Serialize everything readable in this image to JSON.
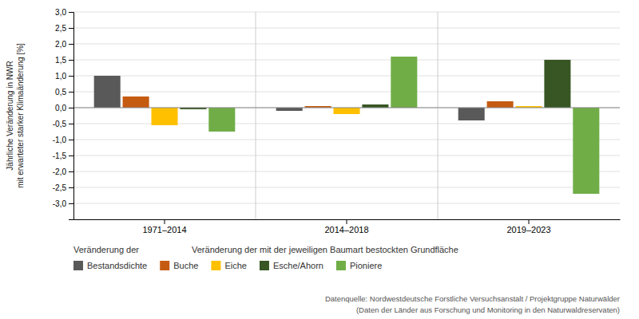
{
  "chart_data": {
    "type": "bar",
    "categories": [
      "1971–2014",
      "2014–2018",
      "2019–2023"
    ],
    "series": [
      {
        "name": "Bestandsdichte",
        "color": "#595959",
        "values": [
          1.0,
          -0.1,
          -0.4
        ]
      },
      {
        "name": "Buche",
        "color": "#c55a11",
        "values": [
          0.35,
          0.05,
          0.2
        ]
      },
      {
        "name": "Eiche",
        "color": "#ffc000",
        "values": [
          -0.55,
          -0.2,
          0.05
        ]
      },
      {
        "name": "Esche/Ahorn",
        "color": "#375623",
        "values": [
          -0.05,
          0.1,
          1.5
        ]
      },
      {
        "name": "Pioniere",
        "color": "#70ad47",
        "values": [
          -0.75,
          1.6,
          -2.7
        ]
      }
    ],
    "ylabel": "Jährliche Veränderung in NWR\nmit erwarteter starker Klimaänderung [%]",
    "ylim": [
      -3.5,
      3.0
    ],
    "yticks": [
      {
        "value": -3.0,
        "label": "-3,0"
      },
      {
        "value": -2.5,
        "label": "-2,5"
      },
      {
        "value": -2.0,
        "label": "-2,0"
      },
      {
        "value": -1.5,
        "label": "-1,5"
      },
      {
        "value": -1.0,
        "label": "-1,0"
      },
      {
        "value": -0.5,
        "label": "-0,5"
      },
      {
        "value": 0.0,
        "label": "0,0"
      },
      {
        "value": 0.5,
        "label": "0,5"
      },
      {
        "value": 1.0,
        "label": "1,0"
      },
      {
        "value": 1.5,
        "label": "1,5"
      },
      {
        "value": 2.0,
        "label": "2,0"
      },
      {
        "value": 2.5,
        "label": "2,5"
      },
      {
        "value": 3.0,
        "label": "3,0"
      }
    ],
    "grid": true,
    "legend": "bottom",
    "annotations": [
      "Veränderung der",
      "Veränderung der mit der jeweiligen Baumart bestockten Grundfläche",
      "Datenquelle: Nordwestdeutsche Forstliche Versuchsanstalt / Projektgruppe Naturwälder",
      "(Daten der Länder aus Forschung und Monitoring in den Naturwaldreservaten)"
    ]
  }
}
